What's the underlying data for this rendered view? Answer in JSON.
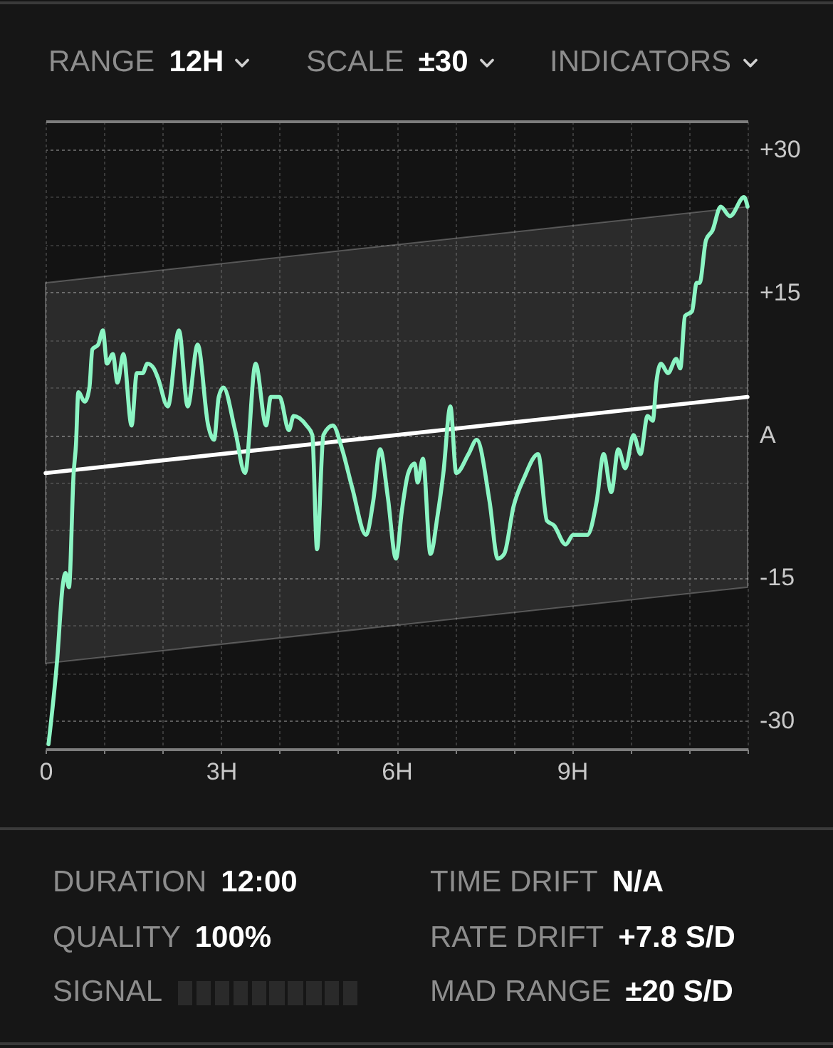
{
  "chart_data": {
    "type": "line",
    "xlim": [
      0,
      12
    ],
    "ylim": [
      -33,
      33
    ],
    "xticks": [
      0,
      {
        "value": 1,
        "label": null
      },
      {
        "value": 2,
        "label": null
      },
      {
        "value": 3,
        "label": "3H"
      },
      {
        "value": 4,
        "label": null
      },
      {
        "value": 5,
        "label": null
      },
      {
        "value": 6,
        "label": "6H"
      },
      {
        "value": 7,
        "label": null
      },
      {
        "value": 8,
        "label": null
      },
      {
        "value": 9,
        "label": "9H"
      },
      {
        "value": 10,
        "label": null
      },
      {
        "value": 11,
        "label": null
      },
      {
        "value": 12,
        "label": null
      }
    ],
    "yticks": [
      {
        "value": 30,
        "label": "+30"
      },
      {
        "value": 25,
        "label": null
      },
      {
        "value": 20,
        "label": null
      },
      {
        "value": 15,
        "label": "+15"
      },
      {
        "value": 10,
        "label": null
      },
      {
        "value": 5,
        "label": null
      },
      {
        "value": 0,
        "label": "A"
      },
      {
        "value": -5,
        "label": null
      },
      {
        "value": -10,
        "label": null
      },
      -15,
      {
        "value": -20,
        "label": null
      },
      {
        "value": -25,
        "label": null
      },
      -30
    ],
    "grid": true,
    "series": [
      {
        "type": "line",
        "color": "#ffffff",
        "x": [
          0,
          12
        ],
        "values": [
          -4,
          4
        ],
        "lower": [
          -24,
          -16
        ],
        "upper": [
          16,
          24
        ]
      },
      {
        "color": "#8cf5c4",
        "x": [
          0.05,
          0.2,
          0.29,
          0.34,
          0.4,
          0.48,
          0.52,
          0.56,
          0.67,
          0.75,
          0.8,
          0.9,
          0.98,
          1.05,
          1.15,
          1.23,
          1.33,
          1.47,
          1.56,
          1.66,
          1.74,
          1.85,
          1.92,
          2.09,
          2.28,
          2.43,
          2.6,
          2.78,
          2.88,
          2.96,
          3.04,
          3.24,
          3.41,
          3.59,
          3.77,
          3.85,
          4.0,
          4.16,
          4.24,
          4.46,
          4.56,
          4.64,
          4.75,
          4.91,
          5.07,
          5.24,
          5.48,
          5.6,
          5.72,
          5.85,
          5.99,
          6.09,
          6.2,
          6.31,
          6.36,
          6.45,
          6.58,
          6.7,
          6.8,
          6.92,
          7.02,
          7.23,
          7.37,
          7.59,
          7.73,
          7.84,
          8.0,
          8.18,
          8.42,
          8.57,
          8.69,
          8.89,
          9.02,
          9.26,
          9.42,
          9.54,
          9.67,
          9.79,
          9.91,
          10.05,
          10.17,
          10.29,
          10.38,
          10.44,
          10.52,
          10.64,
          10.78,
          10.85,
          10.93,
          11.05,
          11.13,
          11.18,
          11.29,
          11.4,
          11.54,
          11.7,
          11.94,
          12.0
        ],
        "values": [
          -32.5,
          -23.5,
          -16,
          -14.5,
          -16,
          -4,
          -1,
          4.5,
          3.5,
          5,
          9,
          9.5,
          11,
          7.5,
          8.5,
          5.5,
          8.5,
          1,
          6.5,
          6.5,
          7.5,
          7,
          6,
          3,
          11,
          3,
          9.5,
          1,
          -0.5,
          4,
          5,
          0.5,
          -4,
          7.5,
          1,
          4,
          4,
          0.5,
          2,
          1,
          0,
          -12,
          0,
          1,
          -1.5,
          -5.5,
          -10.5,
          -7,
          -1.5,
          -6.5,
          -13,
          -8,
          -4,
          -3,
          -5,
          -2.5,
          -12.5,
          -8.5,
          -4,
          3,
          -4,
          -2,
          -0.5,
          -7,
          -13,
          -12.5,
          -7.5,
          -4.5,
          -2,
          -9,
          -9.5,
          -11.5,
          -10.5,
          -10.5,
          -7,
          -2,
          -6,
          -1.5,
          -3.5,
          0,
          -2,
          2,
          1.5,
          5.5,
          7.5,
          6.5,
          8,
          7,
          12.5,
          13,
          16,
          16,
          20.5,
          21.5,
          24,
          23,
          25,
          24
        ]
      }
    ],
    "annotations": [
      "RANGE",
      "12H",
      "SCALE",
      "±30",
      "INDICATORS",
      "DURATION",
      "12:00",
      "QUALITY",
      "100%",
      "SIGNAL",
      "TIME DRIFT",
      "N/A",
      "RATE DRIFT",
      "+7.8 S/D",
      "MAD RANGE",
      "±20 S/D"
    ]
  }
}
